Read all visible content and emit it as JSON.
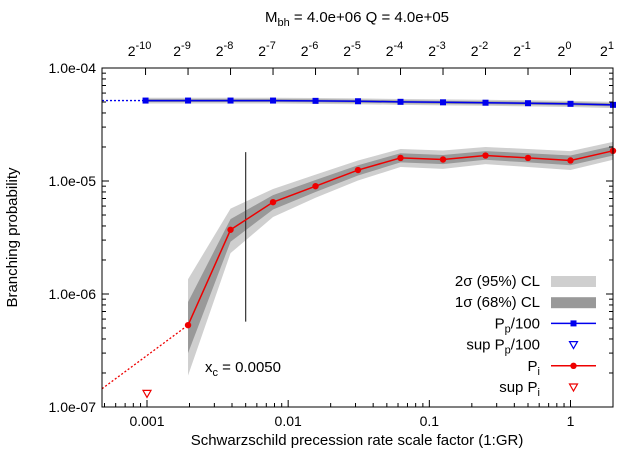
{
  "chart_data": {
    "type": "line",
    "title": "M_bh = 4.0e+06 Q = 4.0e+05",
    "title_parts": {
      "m": "M",
      "bh_sub": "bh",
      "rest": " = 4.0e+06 Q = 4.0e+05"
    },
    "xlabel": "Schwarzschild precession rate scale factor (1:GR)",
    "ylabel": "Branching probability",
    "x_scale": "log",
    "y_scale": "log",
    "xlim": [
      0.00048,
      2.0
    ],
    "ylim": [
      1e-07,
      0.0001
    ],
    "x_ticks": [
      {
        "value": 0.001,
        "label": "0.001"
      },
      {
        "value": 0.01,
        "label": "0.01"
      },
      {
        "value": 0.1,
        "label": "0.1"
      },
      {
        "value": 1,
        "label": "1"
      }
    ],
    "y_ticks": [
      {
        "value": 1e-07,
        "label": "1.0e-07"
      },
      {
        "value": 1e-06,
        "label": "1.0e-06"
      },
      {
        "value": 1e-05,
        "label": "1.0e-05"
      },
      {
        "value": 0.0001,
        "label": "1.0e-04"
      }
    ],
    "top_ticks": [
      {
        "value": 0.0009765625,
        "base": "2",
        "exp": "-10"
      },
      {
        "value": 0.001953125,
        "base": "2",
        "exp": "-9"
      },
      {
        "value": 0.00390625,
        "base": "2",
        "exp": "-8"
      },
      {
        "value": 0.0078125,
        "base": "2",
        "exp": "-7"
      },
      {
        "value": 0.015625,
        "base": "2",
        "exp": "-6"
      },
      {
        "value": 0.03125,
        "base": "2",
        "exp": "-5"
      },
      {
        "value": 0.0625,
        "base": "2",
        "exp": "-4"
      },
      {
        "value": 0.125,
        "base": "2",
        "exp": "-3"
      },
      {
        "value": 0.25,
        "base": "2",
        "exp": "-2"
      },
      {
        "value": 0.5,
        "base": "2",
        "exp": "-1"
      },
      {
        "value": 1,
        "base": "2",
        "exp": "0"
      },
      {
        "value": 2,
        "base": "2",
        "exp": "1"
      }
    ],
    "series": [
      {
        "name": "P_p/100",
        "color": "#0000ee",
        "marker": "square",
        "x": [
          0.0009765625,
          0.001953125,
          0.00390625,
          0.0078125,
          0.015625,
          0.03125,
          0.0625,
          0.125,
          0.25,
          0.5,
          1,
          2
        ],
        "y": [
          5.15e-05,
          5.15e-05,
          5.15e-05,
          5.15e-05,
          5.12e-05,
          5.08e-05,
          5.02e-05,
          4.97e-05,
          4.93e-05,
          4.88e-05,
          4.82e-05,
          4.72e-05
        ],
        "sigma1": [
          [
            5e-05,
            5.3e-05
          ],
          [
            5e-05,
            5.3e-05
          ],
          [
            5e-05,
            5.3e-05
          ],
          [
            5e-05,
            5.3e-05
          ],
          [
            4.97e-05,
            5.27e-05
          ],
          [
            4.93e-05,
            5.23e-05
          ],
          [
            4.87e-05,
            5.17e-05
          ],
          [
            4.82e-05,
            5.12e-05
          ],
          [
            4.78e-05,
            5.08e-05
          ],
          [
            4.73e-05,
            5.03e-05
          ],
          [
            4.67e-05,
            4.97e-05
          ],
          [
            4.57e-05,
            4.87e-05
          ]
        ],
        "sigma2": [
          [
            4.85e-05,
            5.45e-05
          ],
          [
            4.85e-05,
            5.45e-05
          ],
          [
            4.85e-05,
            5.45e-05
          ],
          [
            4.85e-05,
            5.45e-05
          ],
          [
            4.82e-05,
            5.42e-05
          ],
          [
            4.78e-05,
            5.38e-05
          ],
          [
            4.72e-05,
            5.32e-05
          ],
          [
            4.67e-05,
            5.27e-05
          ],
          [
            4.63e-05,
            5.23e-05
          ],
          [
            4.58e-05,
            5.18e-05
          ],
          [
            4.52e-05,
            5.12e-05
          ],
          [
            4.42e-05,
            5.02e-05
          ]
        ]
      },
      {
        "name": "P_i",
        "color": "#ee0000",
        "marker": "circle",
        "x": [
          0.001953125,
          0.00390625,
          0.0078125,
          0.015625,
          0.03125,
          0.0625,
          0.125,
          0.25,
          0.5,
          1,
          2
        ],
        "y": [
          5.3e-07,
          3.7e-06,
          6.5e-06,
          9e-06,
          1.25e-05,
          1.6e-05,
          1.55e-05,
          1.68e-05,
          1.6e-05,
          1.52e-05,
          1.85e-05
        ],
        "sigma1": [
          [
            3e-07,
            8.5e-07
          ],
          [
            2.9e-06,
            4.6e-06
          ],
          [
            5.6e-06,
            7.5e-06
          ],
          [
            8e-06,
            1.02e-05
          ],
          [
            1.12e-05,
            1.38e-05
          ],
          [
            1.46e-05,
            1.76e-05
          ],
          [
            1.41e-05,
            1.7e-05
          ],
          [
            1.54e-05,
            1.84e-05
          ],
          [
            1.46e-05,
            1.76e-05
          ],
          [
            1.38e-05,
            1.68e-05
          ],
          [
            1.68e-05,
            2.04e-05
          ]
        ],
        "sigma2": [
          [
            1.9e-07,
            1.35e-06
          ],
          [
            2.3e-06,
            5.7e-06
          ],
          [
            4.8e-06,
            8.5e-06
          ],
          [
            7.1e-06,
            1.14e-05
          ],
          [
            1.01e-05,
            1.52e-05
          ],
          [
            1.33e-05,
            1.92e-05
          ],
          [
            1.28e-05,
            1.86e-05
          ],
          [
            1.41e-05,
            2e-05
          ],
          [
            1.33e-05,
            1.92e-05
          ],
          [
            1.25e-05,
            1.84e-05
          ],
          [
            1.54e-05,
            2.22e-05
          ]
        ]
      }
    ],
    "extrapolation": {
      "blue": {
        "from": [
          0.00048,
          5.15e-05
        ],
        "to": [
          0.0009765625,
          5.15e-05
        ]
      },
      "red": {
        "from": [
          0.00048,
          1.45e-07
        ],
        "to": [
          0.001953125,
          5.3e-07
        ]
      }
    },
    "sup_points": [
      {
        "name": "sup P_i",
        "x": 0.001,
        "y": 1.32e-07,
        "color": "#ee0000"
      }
    ],
    "xc_line": {
      "x": 0.005,
      "y_range": [
        5.7e-07,
        1.8e-05
      ]
    },
    "annotation": {
      "prefix": "x",
      "sub": "c",
      "rest": " = 0.0050"
    },
    "legend": {
      "placement": "bottom-right",
      "entries": [
        {
          "label": "2σ (95%) CL",
          "kind": "band",
          "color": "#cfcfcf"
        },
        {
          "label": "1σ (68%) CL",
          "kind": "band",
          "color": "#999999"
        },
        {
          "label_main": "P",
          "label_sub": "p",
          "label_rest": "/100",
          "kind": "line-square",
          "color": "#0000ee"
        },
        {
          "label_main": "sup P",
          "label_sub": "p",
          "label_rest": "/100",
          "kind": "triangle",
          "color": "#0000ee"
        },
        {
          "label_main": "P",
          "label_sub": "i",
          "label_rest": "",
          "kind": "line-circle",
          "color": "#ee0000"
        },
        {
          "label_main": "sup P",
          "label_sub": "i",
          "label_rest": "",
          "kind": "triangle",
          "color": "#ee0000"
        }
      ]
    },
    "grid": false
  }
}
